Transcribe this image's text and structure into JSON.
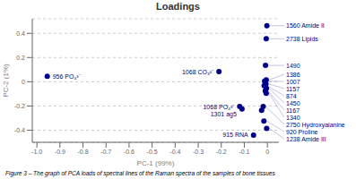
{
  "chart_data": {
    "type": "scatter",
    "title": "Loadings",
    "xlabel": "PC-1 (99%)",
    "ylabel": "PC-2 (1%)",
    "caption": "Figure 3 – The graph of PCA loads of spectral lines of the Raman spectra of the samples of bone tissues",
    "color": "#00008B",
    "grid": true,
    "xlim": [
      -1.02,
      0.05
    ],
    "ylim": [
      -0.5,
      0.52
    ],
    "xticks": [
      {
        "value": -1.0,
        "label": "-1.0"
      },
      -0.9,
      -0.8,
      -0.7,
      -0.6,
      -0.5,
      -0.4,
      -0.3,
      -0.2,
      -0.1,
      0
    ],
    "yticks": [
      -0.4,
      -0.2,
      0,
      0.2,
      0.4
    ],
    "x": [
      -0.955,
      -0.21,
      -0.002,
      -0.005,
      -0.008,
      -0.005,
      -0.012,
      -0.006,
      -0.014,
      -0.004,
      -0.009,
      -0.005,
      -0.12,
      -0.018,
      -0.11,
      -0.025,
      -0.015,
      -0.003,
      -0.06
    ],
    "y": [
      0.045,
      0.083,
      0.463,
      0.355,
      0.135,
      0.015,
      0.005,
      -0.018,
      -0.032,
      -0.055,
      -0.075,
      -0.095,
      -0.205,
      -0.205,
      -0.225,
      -0.235,
      -0.325,
      -0.385,
      -0.44
    ],
    "labels": [
      "956 PO₄³⁻",
      "1068 CO₃²⁻",
      "1560 Amide II",
      "2738 Lipids",
      "1490",
      "1386",
      "1007",
      "1157",
      "874",
      "1450",
      "1167",
      "1340",
      "1068 PO₄³⁻",
      "2750 Hydroxyalanine",
      "1301 ag5",
      null,
      "920 Proline",
      "1238 Amide III",
      "915 RNA"
    ]
  }
}
